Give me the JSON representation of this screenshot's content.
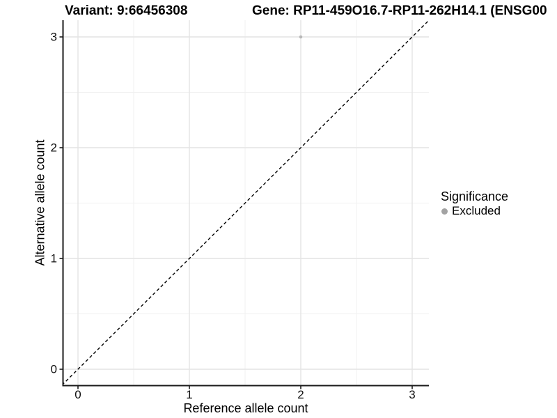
{
  "header": {
    "variant_title": "Variant: 9:66456308",
    "gene_title": "Gene: RP11-459O16.7-RP11-262H14.1 (ENSG00"
  },
  "chart_data": {
    "type": "scatter",
    "xlabel": "Reference allele count",
    "ylabel": "Alternative allele count",
    "xlim": [
      -0.15,
      3.15
    ],
    "ylim": [
      -0.15,
      3.15
    ],
    "x_ticks": [
      "0",
      "1",
      "2",
      "3"
    ],
    "y_ticks": [
      "0",
      "1",
      "2",
      "3"
    ],
    "x_minor_ticks": [
      0.5,
      1.5,
      2.5
    ],
    "y_minor_ticks": [
      0.5,
      1.5,
      2.5
    ],
    "grid": true,
    "reference_line": {
      "slope": 1,
      "intercept": 0,
      "style": "dashed",
      "color": "#000000"
    },
    "series": [
      {
        "name": "Excluded",
        "color": "#b8b8b8",
        "points": [
          {
            "x": 2,
            "y": 3
          }
        ]
      }
    ],
    "legend": {
      "title": "Significance",
      "position": "right",
      "items": [
        {
          "label": "Excluded",
          "color": "#a3a3a3"
        }
      ]
    }
  },
  "colors": {
    "background": "#ffffff",
    "axis_line": "#1a1a1a",
    "tick_mark": "#1a1a1a",
    "grid_major": "#e4e4e4",
    "grid_minor": "#f0f0f0",
    "reference_line": "#000000"
  }
}
